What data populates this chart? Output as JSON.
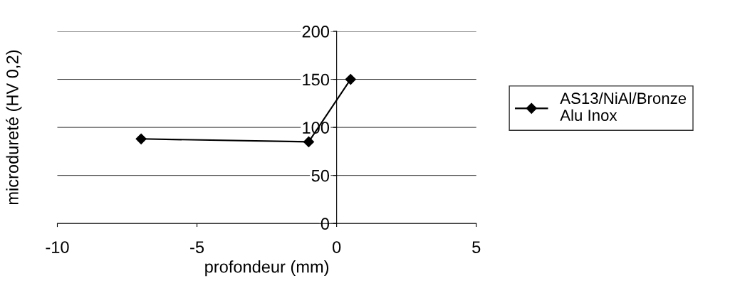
{
  "chart_data": {
    "type": "line",
    "xlabel": "profondeur (mm)",
    "ylabel": "microdureté (HV 0,2)",
    "series": [
      {
        "name": "AS13/NiAl/Bronze\nAlu Inox",
        "color": "#000000",
        "x": [
          -7,
          -1,
          0.5
        ],
        "values": [
          88,
          85,
          150
        ]
      }
    ],
    "xlim": [
      -10,
      5
    ],
    "xticks": [
      -10,
      -5,
      0,
      5
    ],
    "ylim": [
      0,
      200
    ],
    "yticks": [
      0,
      50,
      100,
      150,
      200
    ],
    "grid": "y",
    "legend": "right",
    "marker": "diamond",
    "line_style": "solid"
  }
}
